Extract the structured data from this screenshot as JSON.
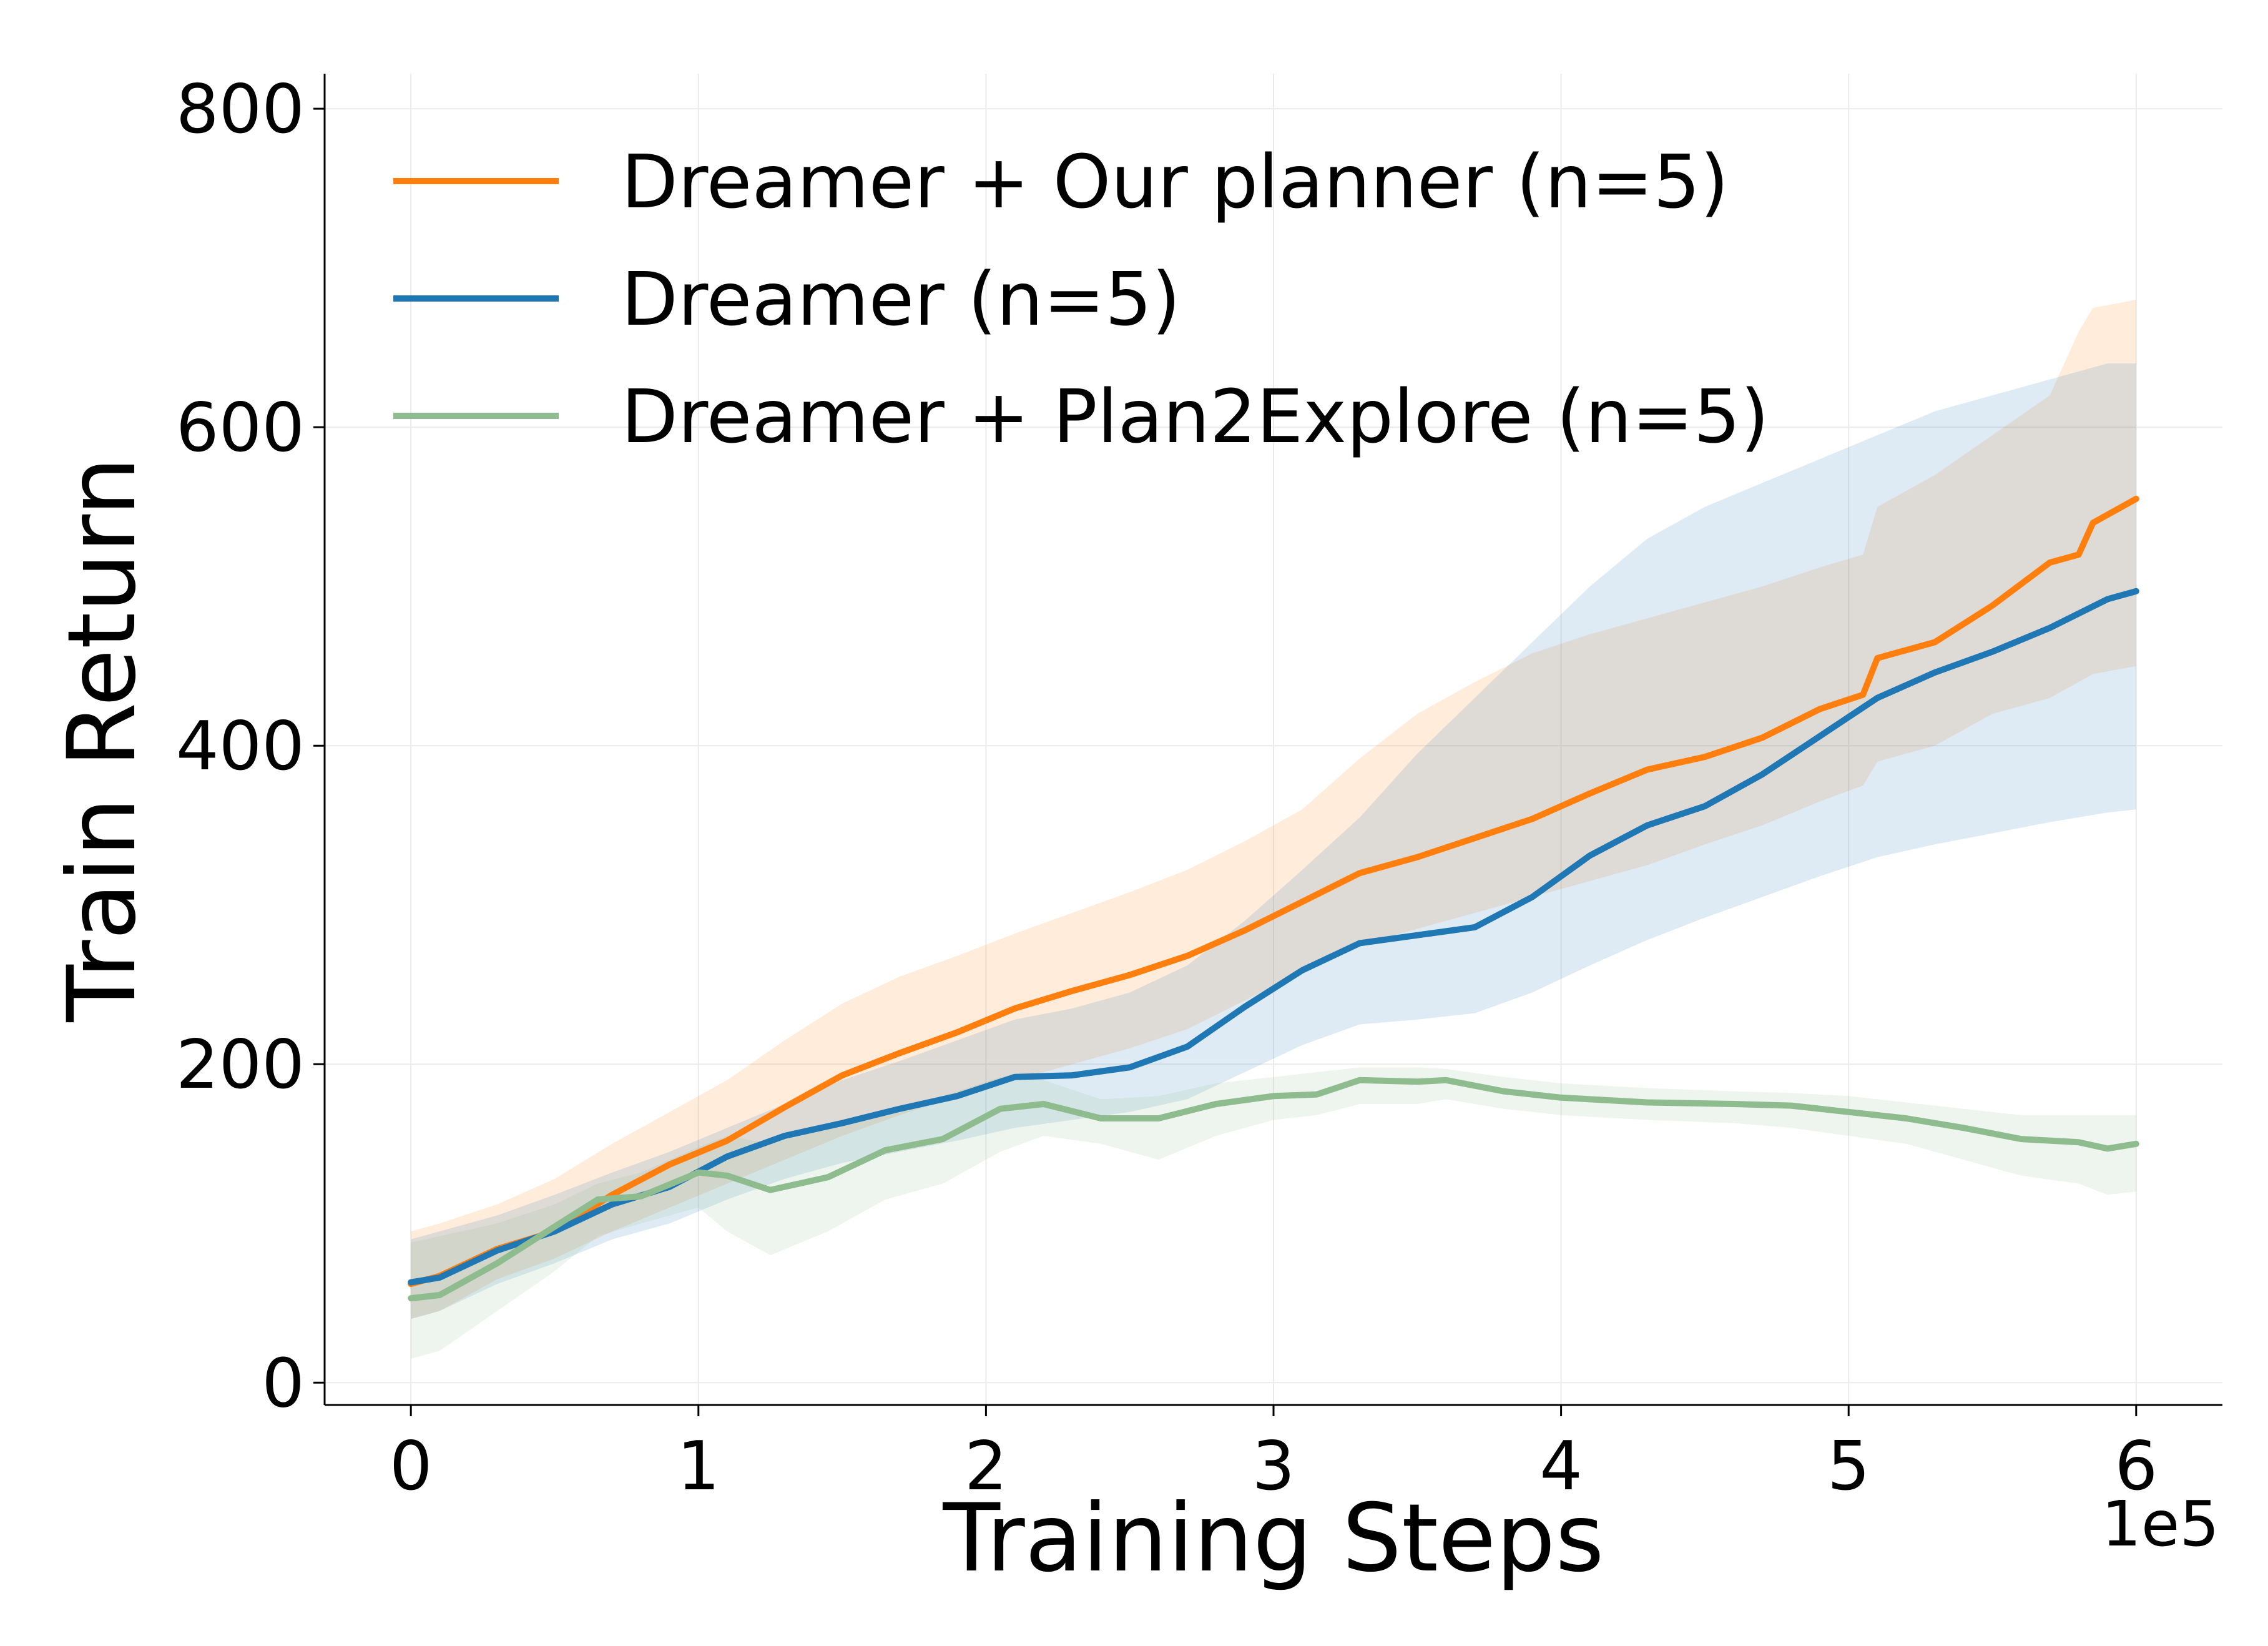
{
  "chart_data": {
    "type": "line",
    "title": "",
    "xlabel": "Training Steps",
    "ylabel": "Train Return",
    "x_offset_label": "1e5",
    "xlim": [
      -0.3,
      6.3
    ],
    "ylim": [
      -14,
      822
    ],
    "x_ticks": [
      0,
      1,
      2,
      3,
      4,
      5,
      6
    ],
    "x_tick_labels": [
      "0",
      "1",
      "2",
      "3",
      "4",
      "5",
      "6"
    ],
    "y_ticks": [
      0,
      200,
      400,
      600,
      800
    ],
    "y_tick_labels": [
      "0",
      "200",
      "400",
      "600",
      "800"
    ],
    "grid": true,
    "legend_position": "upper-left",
    "series": [
      {
        "name": "Dreamer + Our planner (n=5)",
        "color": "#ff7f0e",
        "x": [
          0,
          0.1,
          0.3,
          0.5,
          0.7,
          0.9,
          1.1,
          1.3,
          1.5,
          1.7,
          1.9,
          2.1,
          2.3,
          2.5,
          2.7,
          2.9,
          3.1,
          3.3,
          3.5,
          3.7,
          3.9,
          4.1,
          4.3,
          4.5,
          4.7,
          4.9,
          5.05,
          5.1,
          5.3,
          5.5,
          5.7,
          5.8,
          5.85,
          6.0
        ],
        "y": [
          62,
          67,
          84,
          95,
          118,
          137,
          152,
          173,
          193,
          207,
          220,
          235,
          246,
          256,
          268,
          284,
          302,
          320,
          330,
          342,
          354,
          370,
          385,
          393,
          405,
          423,
          432,
          455,
          465,
          488,
          515,
          520,
          540,
          555
        ],
        "band_upper": [
          95,
          100,
          112,
          128,
          150,
          170,
          190,
          215,
          238,
          255,
          268,
          282,
          295,
          308,
          322,
          340,
          360,
          392,
          420,
          440,
          458,
          470,
          480,
          490,
          500,
          512,
          520,
          550,
          570,
          595,
          620,
          660,
          675,
          680
        ],
        "band_lower": [
          40,
          45,
          65,
          78,
          95,
          110,
          125,
          140,
          155,
          168,
          180,
          190,
          200,
          210,
          222,
          240,
          258,
          275,
          285,
          295,
          305,
          315,
          325,
          338,
          350,
          365,
          375,
          390,
          400,
          420,
          430,
          440,
          445,
          450
        ]
      },
      {
        "name": "Dreamer (n=5)",
        "color": "#1f77b4",
        "x": [
          0,
          0.1,
          0.3,
          0.5,
          0.7,
          0.9,
          1.1,
          1.3,
          1.5,
          1.7,
          1.9,
          2.1,
          2.3,
          2.5,
          2.7,
          2.9,
          3.1,
          3.3,
          3.5,
          3.7,
          3.9,
          4.1,
          4.3,
          4.5,
          4.7,
          4.9,
          5.1,
          5.3,
          5.5,
          5.7,
          5.9,
          6.0
        ],
        "y": [
          63,
          66,
          83,
          95,
          112,
          123,
          142,
          155,
          163,
          172,
          180,
          192,
          193,
          198,
          211,
          236,
          259,
          276,
          281,
          286,
          305,
          331,
          350,
          362,
          382,
          406,
          430,
          446,
          459,
          474,
          492,
          497
        ],
        "band_upper": [
          90,
          95,
          105,
          118,
          132,
          145,
          160,
          175,
          190,
          202,
          215,
          228,
          235,
          245,
          262,
          290,
          322,
          355,
          395,
          430,
          465,
          500,
          530,
          550,
          565,
          580,
          595,
          610,
          620,
          630,
          640,
          640
        ],
        "band_lower": [
          40,
          45,
          62,
          75,
          90,
          100,
          115,
          128,
          138,
          145,
          152,
          160,
          165,
          170,
          178,
          195,
          212,
          225,
          228,
          232,
          245,
          262,
          278,
          292,
          305,
          318,
          330,
          338,
          345,
          352,
          358,
          360
        ]
      },
      {
        "name": "Dreamer + Plan2Explore (n=5)",
        "color": "#8fbc8f",
        "x": [
          0,
          0.1,
          0.3,
          0.5,
          0.65,
          0.8,
          1.0,
          1.1,
          1.25,
          1.45,
          1.65,
          1.85,
          2.05,
          2.2,
          2.4,
          2.6,
          2.8,
          3.0,
          3.15,
          3.3,
          3.5,
          3.6,
          3.8,
          4.0,
          4.3,
          4.6,
          4.8,
          5.0,
          5.2,
          5.4,
          5.6,
          5.8,
          5.9,
          6.0
        ],
        "y": [
          53,
          55,
          75,
          98,
          115,
          117,
          132,
          130,
          121,
          129,
          146,
          153,
          172,
          175,
          166,
          166,
          175,
          180,
          181,
          190,
          189,
          190,
          183,
          179,
          176,
          175,
          174,
          170,
          166,
          160,
          153,
          151,
          147,
          150
        ],
        "band_upper": [
          88,
          92,
          100,
          112,
          125,
          132,
          148,
          155,
          150,
          160,
          172,
          180,
          192,
          190,
          178,
          180,
          188,
          192,
          195,
          198,
          198,
          197,
          192,
          188,
          185,
          183,
          182,
          180,
          176,
          172,
          168,
          168,
          168,
          168
        ],
        "band_lower": [
          15,
          20,
          45,
          70,
          92,
          100,
          110,
          95,
          80,
          95,
          115,
          125,
          145,
          155,
          150,
          140,
          155,
          165,
          168,
          175,
          175,
          178,
          172,
          168,
          165,
          163,
          160,
          155,
          150,
          140,
          130,
          125,
          118,
          120
        ]
      }
    ]
  }
}
